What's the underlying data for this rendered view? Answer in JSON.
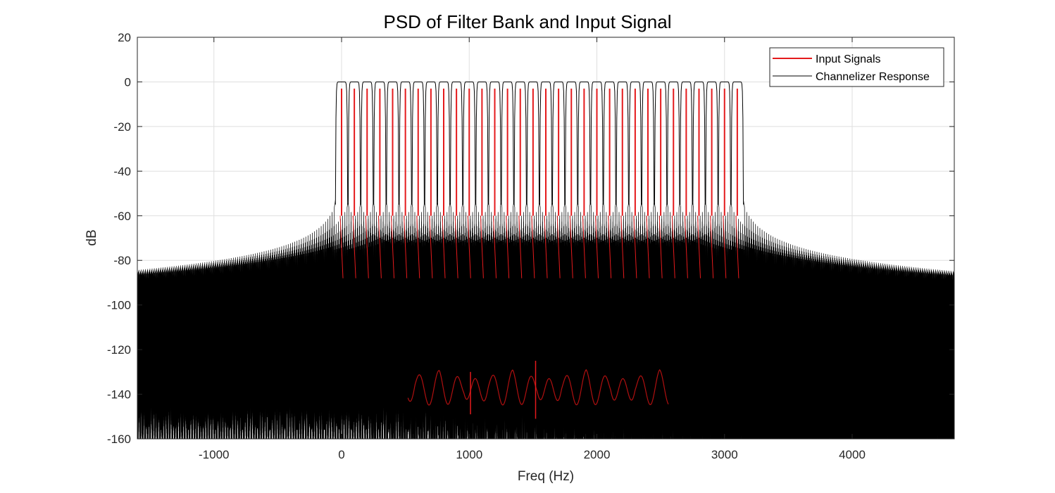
{
  "chart_data": {
    "type": "line",
    "title": "PSD of Filter Bank and Input Signal",
    "xlabel": "Freq (Hz)",
    "ylabel": "dB",
    "xlim": [
      -1600,
      4800
    ],
    "ylim": [
      -160,
      20
    ],
    "xticks": [
      -1000,
      0,
      1000,
      2000,
      3000,
      4000
    ],
    "yticks": [
      20,
      0,
      -20,
      -40,
      -60,
      -80,
      -100,
      -120,
      -140,
      -160
    ],
    "grid": true,
    "legend": {
      "position": "top-right",
      "entries": [
        "Input Signals",
        "Channelizer Response"
      ]
    },
    "series": [
      {
        "name": "Input Signals",
        "color": "#e41a1c",
        "tone_frequencies_hz": [
          0,
          100,
          200,
          300,
          400,
          500,
          600,
          700,
          800,
          900,
          1000,
          1100,
          1200,
          1300,
          1400,
          1500,
          1600,
          1700,
          1800,
          1900,
          2000,
          2100,
          2200,
          2300,
          2400,
          2500,
          2600,
          2700,
          2800,
          2900,
          3000,
          3100
        ],
        "peak_db": -3,
        "floor_db": -135,
        "min_db": -151
      },
      {
        "name": "Channelizer Response",
        "color": "#000000",
        "channel_centers_hz": [
          0,
          100,
          200,
          300,
          400,
          500,
          600,
          700,
          800,
          900,
          1000,
          1100,
          1200,
          1300,
          1400,
          1500,
          1600,
          1700,
          1800,
          1900,
          2000,
          2100,
          2200,
          2300,
          2400,
          2500,
          2600,
          2700,
          2800,
          2900,
          3000,
          3100
        ],
        "passband_db": 0,
        "passband_range_hz": [
          -75,
          3175
        ],
        "sidelobe_top_db": -51,
        "null_db": -156
      }
    ]
  }
}
